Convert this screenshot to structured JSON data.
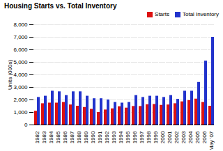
{
  "chart_data": {
    "type": "bar",
    "title": "Housing Starts vs. Total Inventory",
    "ylabel": "Units (000s)",
    "categories": [
      "1982",
      "1983",
      "1984",
      "1985",
      "1986",
      "1987",
      "1988",
      "1989",
      "1990",
      "1991",
      "1992",
      "1993",
      "1994",
      "1995",
      "1996",
      "1997",
      "1998",
      "1999",
      "2000",
      "2001",
      "2002",
      "2003",
      "2004",
      "2005",
      "2006",
      "May '07"
    ],
    "series": [
      {
        "name": "Starts",
        "color": "#DD1111",
        "values": [
          1100,
          1700,
          1750,
          1750,
          1800,
          1600,
          1500,
          1400,
          1250,
          1000,
          1200,
          1290,
          1460,
          1350,
          1480,
          1480,
          1620,
          1640,
          1570,
          1600,
          1700,
          1850,
          1950,
          2070,
          1800,
          1500
        ]
      },
      {
        "name": "Total Inventory",
        "color": "#2233CC",
        "values": [
          2200,
          2300,
          2700,
          2650,
          2350,
          2650,
          2650,
          2300,
          2100,
          2100,
          2000,
          1800,
          1750,
          1800,
          2350,
          2200,
          2300,
          2300,
          2200,
          2350,
          2050,
          2700,
          2700,
          3400,
          5100,
          7000
        ]
      }
    ],
    "ylim": [
      0,
      8000
    ],
    "yticks": [
      0,
      {
        "value": 1000,
        "label": "1,000"
      },
      {
        "value": 2000,
        "label": "2,000"
      },
      {
        "value": 3000,
        "label": "3,000"
      },
      {
        "value": 4000,
        "label": "4,000"
      },
      {
        "value": 5000,
        "label": "5,000"
      },
      {
        "value": 6000,
        "label": "6,000"
      },
      {
        "value": 7000,
        "label": "7,000"
      },
      {
        "value": 8000,
        "label": "8,000"
      }
    ],
    "grid": true,
    "legend": "upper right"
  }
}
